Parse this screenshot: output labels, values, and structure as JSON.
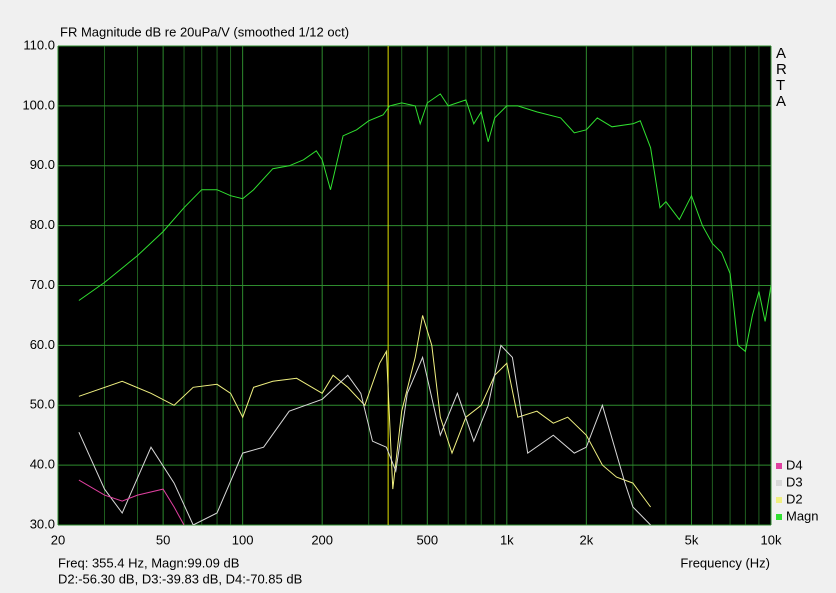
{
  "chart_data": {
    "type": "line",
    "title": "FR Magnitude dB re 20uPa/V (smoothed 1/12 oct)",
    "xlabel": "Frequency (Hz)",
    "brand": [
      "A",
      "R",
      "T",
      "A"
    ],
    "readout": [
      "Freq: 355.4 Hz, Magn:99.09 dB",
      "D2:-56.30 dB, D3:-39.83 dB, D4:-70.85 dB"
    ],
    "cursor_x": 355.4,
    "cursor_color": "#e0e000",
    "xscale": "log",
    "grid": true,
    "legend": "lower right",
    "xlim": [
      20,
      10000
    ],
    "ylim": [
      30,
      110
    ],
    "xticks": [
      20,
      50,
      100,
      200,
      500,
      {
        "value": 1000,
        "label": "1k"
      },
      {
        "value": 2000,
        "label": "2k"
      },
      {
        "value": 5000,
        "label": "5k"
      },
      {
        "value": 10000,
        "label": "10k"
      }
    ],
    "xminorticks": [
      30,
      40,
      60,
      70,
      80,
      90,
      300,
      400,
      600,
      700,
      800,
      900,
      3000,
      4000,
      6000,
      7000,
      8000,
      9000
    ],
    "yticks": [
      {
        "value": 110,
        "label": "110.0"
      },
      {
        "value": 100,
        "label": "100.0"
      },
      {
        "value": 90,
        "label": "90.0"
      },
      {
        "value": 80,
        "label": "80.0"
      },
      {
        "value": 70,
        "label": "70.0"
      },
      {
        "value": 60,
        "label": "60.0"
      },
      {
        "value": 50,
        "label": "50.0"
      },
      {
        "value": 40,
        "label": "40.0"
      },
      {
        "value": 30,
        "label": "30.0"
      }
    ],
    "series": [
      {
        "name": "Magn",
        "color": "#30e030",
        "x": [
          24,
          30,
          40,
          50,
          60,
          70,
          80,
          90,
          100,
          110,
          130,
          150,
          170,
          190,
          200,
          215,
          240,
          270,
          300,
          340,
          360,
          400,
          450,
          470,
          500,
          560,
          600,
          700,
          750,
          800,
          850,
          900,
          1000,
          1100,
          1300,
          1600,
          1800,
          2000,
          2200,
          2500,
          3000,
          3200,
          3500,
          3800,
          4000,
          4500,
          5000,
          5500,
          6000,
          6500,
          7000,
          7500,
          8000,
          8500,
          9000,
          9500,
          10000
        ],
        "values": [
          67.5,
          70.5,
          75,
          79,
          83,
          86,
          86,
          85,
          84.5,
          86,
          89.5,
          90,
          91,
          92.5,
          91,
          86,
          95,
          96,
          97.5,
          98.5,
          100,
          100.5,
          100,
          97,
          100.5,
          102,
          100,
          101,
          97,
          99,
          94,
          98,
          100,
          100,
          99,
          98,
          95.5,
          96,
          98,
          96.5,
          97,
          97.5,
          93,
          83,
          84,
          81,
          85,
          80,
          77,
          75.5,
          72,
          60,
          59,
          65,
          69,
          64,
          70
        ]
      },
      {
        "name": "D2",
        "color": "#f0f080",
        "x": [
          24,
          35,
          45,
          55,
          65,
          80,
          90,
          100,
          110,
          130,
          160,
          200,
          220,
          250,
          290,
          330,
          350,
          370,
          400,
          450,
          480,
          520,
          560,
          620,
          700,
          800,
          900,
          1000,
          1100,
          1300,
          1500,
          1700,
          2000,
          2300,
          2600,
          3000,
          3500
        ],
        "values": [
          51.5,
          54,
          52,
          50,
          53,
          53.5,
          52,
          48,
          53,
          54,
          54.5,
          52,
          55,
          53,
          50,
          57,
          59,
          36,
          49,
          58,
          65,
          60,
          48,
          42,
          48,
          50,
          55,
          57,
          48,
          49,
          47,
          48,
          45,
          40,
          38,
          37,
          33
        ]
      },
      {
        "name": "D3",
        "color": "#d8d8d8",
        "x": [
          24,
          30,
          35,
          45,
          55,
          65,
          80,
          100,
          120,
          150,
          200,
          250,
          280,
          310,
          350,
          380,
          420,
          480,
          560,
          650,
          750,
          850,
          950,
          1050,
          1200,
          1500,
          1800,
          2000,
          2300,
          2800,
          3000,
          3500
        ],
        "values": [
          45.5,
          36,
          32,
          43,
          37,
          30,
          32,
          42,
          43,
          49,
          51,
          55,
          52,
          44,
          43,
          39,
          52,
          58,
          45,
          52,
          44,
          50,
          60,
          58,
          42,
          45,
          42,
          43,
          50,
          37,
          33,
          30
        ]
      },
      {
        "name": "D4",
        "color": "#e040a0",
        "x": [
          24,
          30,
          35,
          40,
          50,
          55,
          60
        ],
        "values": [
          37.5,
          35,
          34,
          35,
          36,
          33,
          30
        ]
      }
    ]
  }
}
